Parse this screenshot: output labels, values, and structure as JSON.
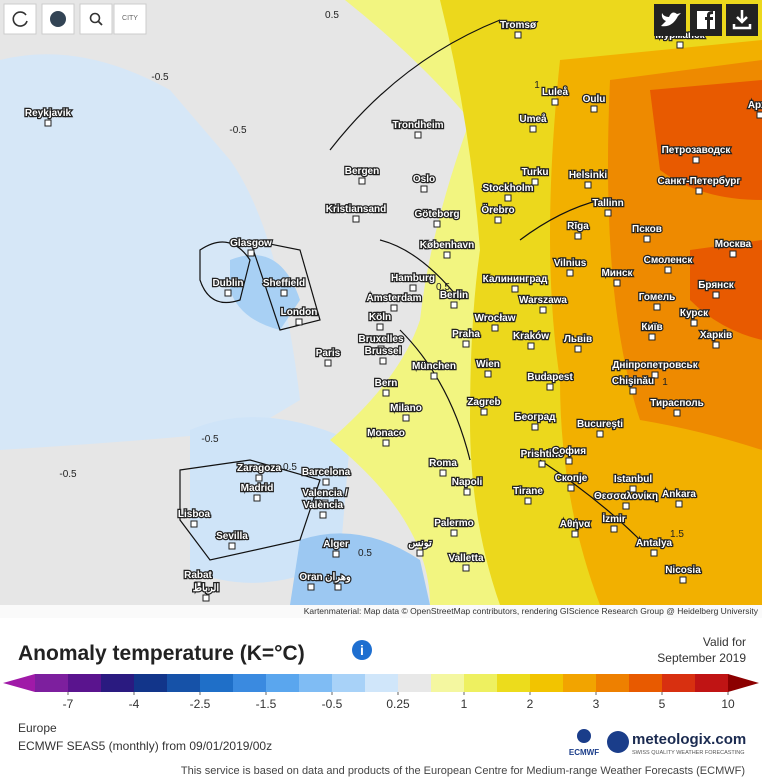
{
  "toolbar": {
    "city": "CITY"
  },
  "map": {
    "contour_labels": [
      "0.5",
      "-0.5",
      "-0.5",
      "1",
      "0.5",
      "-0.5",
      "-0.5",
      "0.5",
      "1",
      "1.5",
      "0.5"
    ],
    "cities": [
      "Reykjavik",
      "Tromsø",
      "Мурманск",
      "Luleå",
      "Oulu",
      "Umeå",
      "Trondheim",
      "Арха",
      "Петрозаводск",
      "Bergen",
      "Oslo",
      "Turku",
      "Helsinki",
      "Санкт-Петербург",
      "Stockholm",
      "Kristiansand",
      "Göteborg",
      "Örebro",
      "Tallinn",
      "Rīga",
      "Псков",
      "Glasgow",
      "København",
      "Москва",
      "Vilnius",
      "Смоленск",
      "Hamburg",
      "Калининград",
      "Минск",
      "Dublin",
      "Sheffield",
      "Брянск",
      "Amsterdam",
      "Berlin",
      "Warszawa",
      "Гомель",
      "London",
      "Köln",
      "Wrocław",
      "Курск",
      "Київ",
      "Praha",
      "Kraków",
      "Львів",
      "Харків",
      "Bruxelles",
      "Paris",
      "Brussel",
      "Дніпропетровськ",
      "München",
      "Wien",
      "Budapest",
      "Chişinău",
      "Bern",
      "Тирасполь",
      "Milano",
      "Zagreb",
      "Београд",
      "Bucureşti",
      "Monaco",
      "Prishtine",
      "София",
      "Zaragoza",
      "Barcelona",
      "Roma",
      "Скопје",
      "Istanbul",
      "Madrid",
      "Napoli",
      "Tirane",
      "Θεσσαλονίκη",
      "Ankara",
      "Valencia /",
      "València",
      "Lisboa",
      "İzmir",
      "Sevilla",
      "Palermo",
      "Αθήνα",
      "Alger",
      "تونس",
      "Antalya",
      "Valletta",
      "Rabat",
      "الرباط",
      "Oran",
      "وهران",
      "Nicosia"
    ],
    "attribution": "Kartenmaterial: Map data © OpenStreetMap contributors, rendering GIScience Research Group @ Heidelberg University"
  },
  "legend": {
    "title": "Anomaly temperature (K=°C)",
    "valid_label": "Valid for",
    "valid_date": "September 2019",
    "ticks": [
      -7,
      -4,
      -2.5,
      -1.5,
      -0.5,
      0.25,
      1,
      2,
      3,
      5,
      10
    ],
    "colors": [
      "#a01aa8",
      "#7d1f9e",
      "#5a148e",
      "#2a1a80",
      "#12358a",
      "#1652a8",
      "#1f6fc8",
      "#3a8ae0",
      "#5aa6ee",
      "#7fbcf4",
      "#a8d2f8",
      "#d0e6fa",
      "#e8e8e8",
      "#f4f7a0",
      "#eef060",
      "#ecdc1c",
      "#f2c400",
      "#f2a400",
      "#ee8000",
      "#e85a00",
      "#d83010",
      "#c01414",
      "#8c0000"
    ]
  },
  "footer": {
    "region": "Europe",
    "model": "ECMWF SEAS5 (monthly) from 09/01/2019/00z",
    "ecmwf": "ECMWF",
    "brand": "meteologix.com",
    "brand_tag": "SWISS QUALITY WEATHER FORECASTING",
    "disclaimer": "This service is based on data and products of the European Centre for Medium-range Weather Forecasts (ECMWF)"
  }
}
